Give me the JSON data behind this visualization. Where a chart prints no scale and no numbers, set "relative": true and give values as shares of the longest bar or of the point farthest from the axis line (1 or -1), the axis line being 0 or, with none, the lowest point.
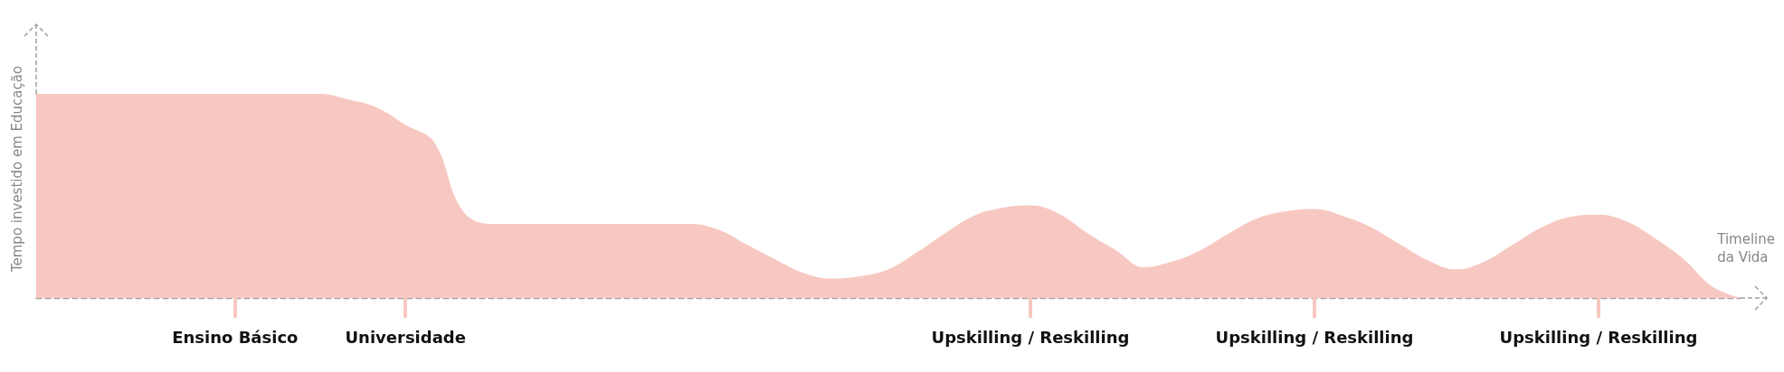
{
  "chart_data": {
    "type": "area",
    "relative": true,
    "xlabel": "Timeline da Vida",
    "ylabel": "Tempo investido em Educação",
    "categories": [
      null,
      null,
      null,
      null,
      null,
      null,
      null,
      "Ensino Básico",
      null,
      null,
      null,
      null,
      null,
      "Universidade",
      null,
      null,
      null,
      null,
      null,
      null,
      null,
      null,
      null,
      null,
      null,
      null,
      null,
      null,
      null,
      null,
      null,
      null,
      null,
      null,
      null,
      "Upskilling / Reskilling",
      null,
      null,
      null,
      null,
      null,
      null,
      null,
      null,
      null,
      "Upskilling / Reskilling",
      null,
      null,
      null,
      null,
      null,
      null,
      null,
      null,
      null,
      "Upskilling / Reskilling",
      null,
      null,
      null,
      null,
      null
    ],
    "series": [
      {
        "color": "#f7c8c1",
        "values": [
          1,
          1,
          1,
          1,
          1,
          1,
          1,
          1,
          1,
          1,
          1,
          0.972,
          0.933,
          0.849,
          0.765,
          0.43,
          0.363,
          0.363,
          0.363,
          0.363,
          0.363,
          0.363,
          0.363,
          0.363,
          0.335,
          0.263,
          0.19,
          0.123,
          0.095,
          0.106,
          0.14,
          0.223,
          0.318,
          0.402,
          0.441,
          0.453,
          0.413,
          0.318,
          0.235,
          0.151,
          0.179,
          0.235,
          0.318,
          0.391,
          0.425,
          0.436,
          0.402,
          0.346,
          0.263,
          0.184,
          0.14,
          0.179,
          0.263,
          0.346,
          0.397,
          0.408,
          0.374,
          0.291,
          0.19,
          0.056,
          0
        ]
      }
    ],
    "grid": false
  }
}
